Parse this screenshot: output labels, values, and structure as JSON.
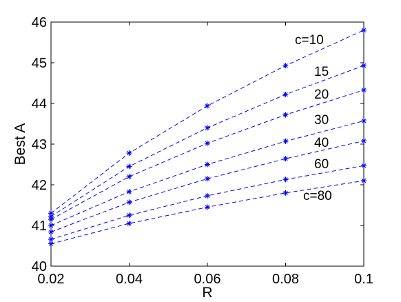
{
  "chart_data": {
    "type": "line",
    "xlabel": "R",
    "ylabel": "Best A",
    "xlim": [
      0.02,
      0.1
    ],
    "ylim": [
      40,
      46
    ],
    "x_ticks": [
      "0.02",
      "0.04",
      "0.06",
      "0.08",
      "0.1"
    ],
    "y_ticks": [
      "40",
      "41",
      "42",
      "43",
      "44",
      "45",
      "46"
    ],
    "x": [
      0.02,
      0.04,
      0.06,
      0.08,
      0.1
    ],
    "line_style": "dashed",
    "marker": "asterisk",
    "series_color": "#0000ff",
    "grid": false,
    "series": [
      {
        "name": "c=10",
        "values": [
          41.3,
          42.78,
          43.94,
          44.93,
          45.8
        ]
      },
      {
        "name": "15",
        "values": [
          41.22,
          42.45,
          43.4,
          44.22,
          44.93
        ]
      },
      {
        "name": "20",
        "values": [
          41.15,
          42.2,
          43.02,
          43.72,
          44.33
        ]
      },
      {
        "name": "30",
        "values": [
          41.0,
          41.83,
          42.5,
          43.07,
          43.57
        ]
      },
      {
        "name": "40",
        "values": [
          40.84,
          41.57,
          42.15,
          42.64,
          43.08
        ]
      },
      {
        "name": "60",
        "values": [
          40.66,
          41.25,
          41.73,
          42.13,
          42.47
        ]
      },
      {
        "name": "c=80",
        "values": [
          40.55,
          41.05,
          41.45,
          41.8,
          42.1
        ]
      }
    ]
  }
}
